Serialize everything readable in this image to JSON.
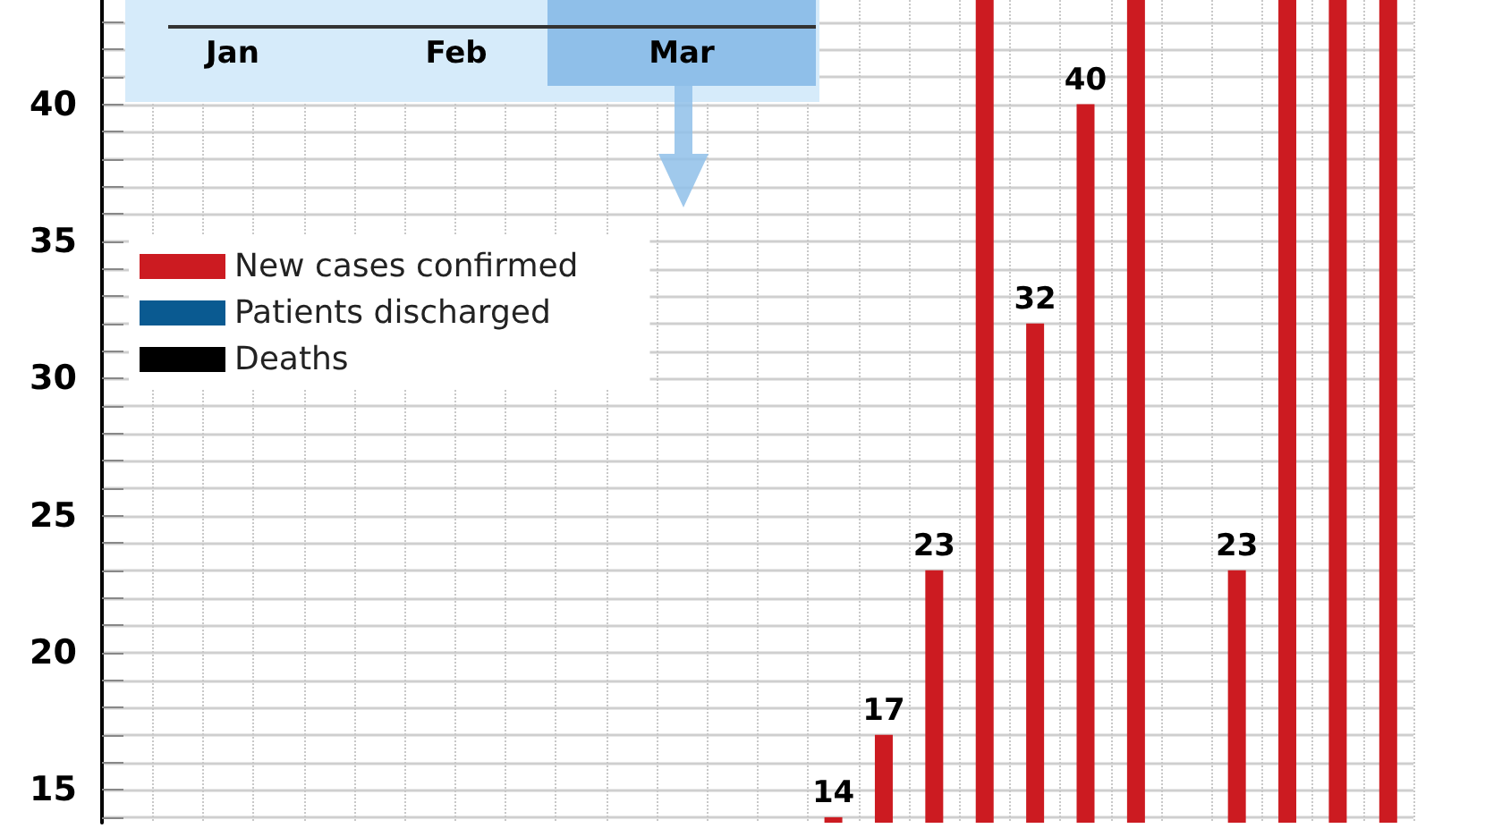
{
  "chart_data": {
    "type": "bar",
    "categories": [
      null,
      null,
      null,
      null,
      null,
      null,
      null,
      null,
      null,
      null,
      null,
      null,
      null,
      null,
      null,
      null,
      null,
      null,
      null,
      null,
      null,
      null,
      null,
      null,
      null,
      null
    ],
    "series": [
      {
        "name": "New cases confirmed",
        "color": "#cc1b21",
        "values": [
          null,
          null,
          null,
          null,
          null,
          null,
          null,
          null,
          null,
          null,
          null,
          null,
          null,
          null,
          14,
          17,
          23,
          43.8,
          32,
          40,
          43.8,
          null,
          23,
          43.8,
          43.8,
          43.8
        ],
        "value_labels": [
          null,
          null,
          null,
          null,
          null,
          null,
          null,
          null,
          null,
          null,
          null,
          null,
          null,
          null,
          "14",
          "17",
          "23",
          null,
          "32",
          "40",
          null,
          null,
          "23",
          null,
          null,
          null
        ]
      },
      {
        "name": "Patients discharged",
        "color": "#0a5a91",
        "values": [
          null,
          null,
          null,
          null,
          null,
          null,
          null,
          null,
          null,
          null,
          null,
          null,
          null,
          null,
          null,
          null,
          null,
          null,
          null,
          null,
          null,
          null,
          null,
          null,
          null,
          null
        ]
      },
      {
        "name": "Deaths",
        "color": "#000000",
        "values": [
          null,
          null,
          null,
          null,
          null,
          null,
          null,
          null,
          null,
          null,
          null,
          null,
          null,
          null,
          null,
          null,
          null,
          null,
          null,
          null,
          null,
          null,
          null,
          null,
          null,
          null
        ]
      }
    ],
    "ylim": [
      13.8,
      43.8
    ],
    "yticks": [
      {
        "value": 14,
        "label": null
      },
      15,
      {
        "value": 16,
        "label": null
      },
      {
        "value": 17,
        "label": null
      },
      {
        "value": 18,
        "label": null
      },
      {
        "value": 19,
        "label": null
      },
      20,
      {
        "value": 21,
        "label": null
      },
      {
        "value": 22,
        "label": null
      },
      {
        "value": 23,
        "label": null
      },
      {
        "value": 24,
        "label": null
      },
      25,
      {
        "value": 26,
        "label": null
      },
      {
        "value": 27,
        "label": null
      },
      {
        "value": 28,
        "label": null
      },
      {
        "value": 29,
        "label": null
      },
      30,
      {
        "value": 31,
        "label": null
      },
      {
        "value": 32,
        "label": null
      },
      {
        "value": 33,
        "label": null
      },
      {
        "value": 34,
        "label": null
      },
      35,
      {
        "value": 36,
        "label": null
      },
      {
        "value": 37,
        "label": null
      },
      {
        "value": 38,
        "label": null
      },
      {
        "value": 39,
        "label": null
      },
      40,
      {
        "value": 41,
        "label": null
      },
      {
        "value": 42,
        "label": null
      },
      {
        "value": 43,
        "label": null
      }
    ],
    "grid": true,
    "legend": "top left",
    "annotations": [
      "Jan",
      "Feb",
      "Mar"
    ]
  }
}
